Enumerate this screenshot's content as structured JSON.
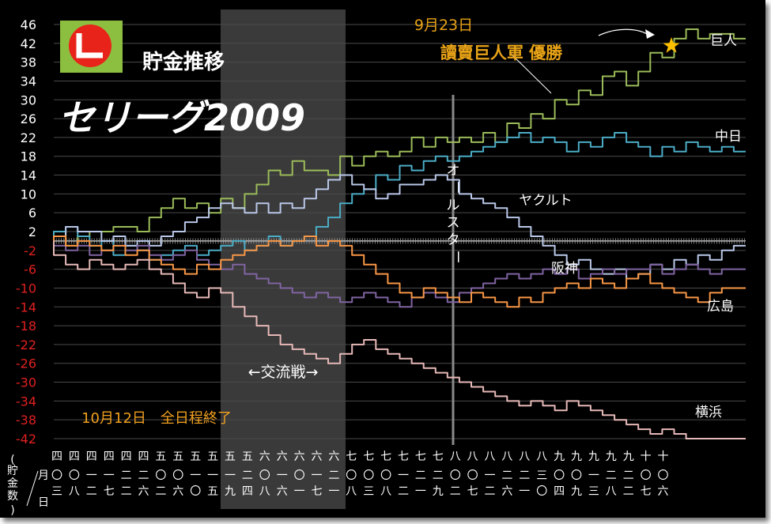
{
  "chart_data": {
    "type": "line",
    "title": "セリーグ2009",
    "subtitle": "貯金推移",
    "ylabel": "貯金数",
    "xlabel": "月/日",
    "ylim": [
      -42,
      46
    ],
    "yticks": [
      "46",
      "42",
      "38",
      "34",
      "30",
      "26",
      "22",
      "18",
      "14",
      "10",
      "6",
      "2",
      "-2",
      "-6",
      "-10",
      "-14",
      "-18",
      "-22",
      "-26",
      "-30",
      "-34",
      "-38",
      "-42"
    ],
    "x_month_labels": [
      "四",
      "四",
      "四",
      "四",
      "四",
      "四",
      "五",
      "五",
      "五",
      "五",
      "五",
      "五",
      "六",
      "六",
      "六",
      "六",
      "六",
      "七",
      "七",
      "七",
      "七",
      "七",
      "七",
      "八",
      "八",
      "八",
      "八",
      "八",
      "八",
      "九",
      "九",
      "九",
      "九",
      "九",
      "十",
      "十"
    ],
    "x_day_labels": [
      [
        "〇",
        "三"
      ],
      [
        "〇",
        "八"
      ],
      [
        "一",
        "二"
      ],
      [
        "一",
        "七"
      ],
      [
        "二",
        "二"
      ],
      [
        "二",
        "六"
      ],
      [
        "〇",
        "二"
      ],
      [
        "〇",
        "六"
      ],
      [
        "一",
        "〇"
      ],
      [
        "一",
        "五"
      ],
      [
        "一",
        "九"
      ],
      [
        "二",
        "四"
      ],
      [
        "〇",
        "八"
      ],
      [
        "一",
        "六"
      ],
      [
        "〇",
        "一"
      ],
      [
        "一",
        "七"
      ],
      [
        "二",
        "一"
      ],
      [
        "〇",
        "八"
      ],
      [
        "〇",
        "三"
      ],
      [
        "〇",
        "八"
      ],
      [
        "一",
        "二"
      ],
      [
        "二",
        "一"
      ],
      [
        "二",
        "九"
      ],
      [
        "〇",
        "二"
      ],
      [
        "〇",
        "七"
      ],
      [
        "一",
        "二"
      ],
      [
        "二",
        "六"
      ],
      [
        "二",
        "一"
      ],
      [
        "三",
        "〇"
      ],
      [
        "〇",
        "四"
      ],
      [
        "〇",
        "九"
      ],
      [
        "一",
        "三"
      ],
      [
        "二",
        "八"
      ],
      [
        "二",
        "二"
      ],
      [
        "〇",
        "七"
      ],
      [
        "〇",
        "六"
      ]
    ],
    "annotations": {
      "interleague": "←交流戦→",
      "allstar": "オールスター",
      "champion_date": "9月23日",
      "champion_text": "讀賣巨人軍 優勝",
      "season_end": "10月12日　全日程終了"
    },
    "series": [
      {
        "name": "巨人",
        "color": "#9bbb59",
        "values": [
          0,
          2,
          -1,
          1,
          2,
          2,
          3,
          3,
          2,
          5,
          7,
          9,
          7,
          8,
          6,
          9,
          7,
          10,
          12,
          15,
          14,
          17,
          15,
          15,
          14,
          18,
          16,
          18,
          19,
          18,
          19,
          22,
          20,
          22,
          21,
          22,
          21,
          23,
          21,
          25,
          24,
          27,
          26,
          30,
          29,
          32,
          31,
          35,
          36,
          33,
          36,
          40,
          39,
          43,
          45,
          43,
          44,
          44,
          43
        ]
      },
      {
        "name": "中日",
        "color": "#4bacc6",
        "values": [
          0,
          2,
          3,
          1,
          -1,
          0,
          -3,
          -1,
          -2,
          -4,
          -3,
          -2,
          -1,
          -3,
          -2,
          -1,
          0,
          -2,
          -1,
          1,
          -1,
          0,
          1,
          3,
          5,
          8,
          10,
          11,
          14,
          13,
          16,
          15,
          17,
          18,
          17,
          18,
          19,
          20,
          21,
          22,
          23,
          21,
          22,
          21,
          19,
          21,
          20,
          22,
          23,
          21,
          20,
          18,
          20,
          19,
          21,
          20,
          19,
          20,
          19
        ]
      },
      {
        "name": "ヤクルト",
        "color": "#b9c7e8",
        "values": [
          0,
          1,
          3,
          2,
          2,
          0,
          1,
          -1,
          0,
          -1,
          1,
          2,
          4,
          5,
          7,
          8,
          7,
          6,
          8,
          6,
          8,
          7,
          9,
          11,
          13,
          14,
          12,
          11,
          9,
          10,
          12,
          12,
          13,
          14,
          13,
          10,
          9,
          8,
          7,
          5,
          3,
          1,
          -1,
          -3,
          -5,
          -4,
          -6,
          -7,
          -6,
          -8,
          -7,
          -5,
          -6,
          -4,
          -5,
          -3,
          -4,
          -2,
          -1
        ]
      },
      {
        "name": "阪神",
        "color": "#8064a2",
        "values": [
          0,
          -1,
          -2,
          -1,
          -3,
          -2,
          -1,
          -2,
          -1,
          -3,
          -4,
          -3,
          -2,
          -4,
          -5,
          -6,
          -5,
          -7,
          -8,
          -9,
          -10,
          -11,
          -12,
          -11,
          -12,
          -13,
          -12,
          -11,
          -12,
          -13,
          -14,
          -12,
          -11,
          -12,
          -13,
          -11,
          -10,
          -9,
          -8,
          -7,
          -8,
          -7,
          -6,
          -7,
          -6,
          -8,
          -7,
          -6,
          -7,
          -6,
          -6,
          -5,
          -7,
          -6,
          -5,
          -6,
          -7,
          -6,
          -6
        ]
      },
      {
        "name": "広島",
        "color": "#f79646",
        "values": [
          0,
          1,
          -1,
          0,
          -1,
          -2,
          -1,
          -3,
          -2,
          -4,
          -5,
          -6,
          -7,
          -5,
          -6,
          -4,
          -3,
          -2,
          -1,
          0,
          -1,
          0,
          1,
          -1,
          0,
          -1,
          -3,
          -5,
          -7,
          -9,
          -11,
          -12,
          -10,
          -11,
          -12,
          -13,
          -11,
          -12,
          -13,
          -14,
          -12,
          -13,
          -11,
          -10,
          -9,
          -10,
          -8,
          -9,
          -10,
          -8,
          -7,
          -9,
          -10,
          -11,
          -12,
          -13,
          -11,
          -10,
          -10
        ]
      },
      {
        "name": "横浜",
        "color": "#e6b9b8",
        "values": [
          0,
          -3,
          -5,
          -6,
          -4,
          -5,
          -6,
          -5,
          -4,
          -6,
          -7,
          -9,
          -11,
          -12,
          -10,
          -11,
          -14,
          -16,
          -18,
          -20,
          -22,
          -23,
          -24,
          -25,
          -26,
          -24,
          -22,
          -21,
          -23,
          -24,
          -25,
          -26,
          -27,
          -28,
          -29,
          -30,
          -31,
          -32,
          -33,
          -34,
          -35,
          -34,
          -35,
          -36,
          -34,
          -35,
          -36,
          -37,
          -38,
          -39,
          -40,
          -41,
          -40,
          -41,
          -42,
          -42,
          -42,
          -42,
          -42
        ]
      }
    ]
  },
  "series_labels": {
    "giants": "巨人",
    "dragons": "中日",
    "swallows": "ヤクルト",
    "tigers": "阪神",
    "carp": "広島",
    "baystars": "横浜"
  }
}
